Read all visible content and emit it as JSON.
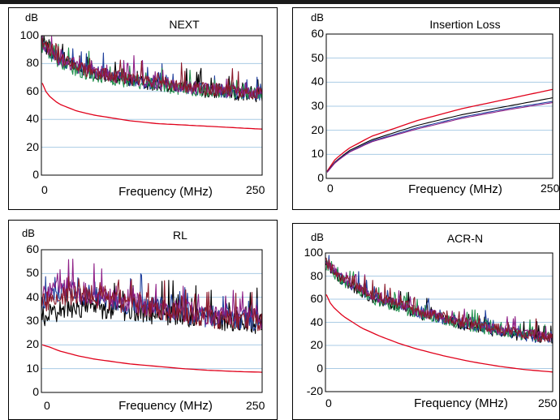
{
  "chart_data": [
    {
      "type": "line",
      "title": "NEXT",
      "ylabel": "dB",
      "xlabel": "Frequency (MHz)",
      "xlim": [
        0,
        250
      ],
      "ylim": [
        0,
        100
      ],
      "yticks": [
        "100",
        "80",
        "60",
        "40",
        "20",
        "0"
      ],
      "ytick_values": [
        100,
        80,
        60,
        40,
        20,
        0
      ],
      "xticks": [
        "0",
        "250"
      ],
      "grid": true,
      "series": [
        {
          "color": "#e0001a",
          "values": [
            [
              1,
              66
            ],
            [
              5,
              60
            ],
            [
              10,
              56
            ],
            [
              20,
              51
            ],
            [
              40,
              46
            ],
            [
              60,
              43
            ],
            [
              80,
              41
            ],
            [
              100,
              39
            ],
            [
              130,
              37
            ],
            [
              160,
              36
            ],
            [
              190,
              35
            ],
            [
              220,
              34
            ],
            [
              250,
              33
            ]
          ]
        },
        {
          "color": "#000000",
          "values": [
            [
              0,
              95
            ],
            [
              20,
              82
            ],
            [
              50,
              74
            ],
            [
              100,
              68
            ],
            [
              150,
              63
            ],
            [
              200,
              59
            ],
            [
              250,
              57
            ]
          ]
        },
        {
          "color": "#1f3f9c",
          "values": [
            [
              0,
              94
            ],
            [
              20,
              83
            ],
            [
              50,
              75
            ],
            [
              100,
              68
            ],
            [
              150,
              64
            ],
            [
              200,
              60
            ],
            [
              250,
              58
            ]
          ]
        },
        {
          "color": "#1e8f4a",
          "values": [
            [
              0,
              93
            ],
            [
              20,
              81
            ],
            [
              50,
              73
            ],
            [
              100,
              67
            ],
            [
              150,
              63
            ],
            [
              200,
              60
            ],
            [
              250,
              58
            ]
          ]
        },
        {
          "color": "#8e1f86",
          "values": [
            [
              0,
              95
            ],
            [
              20,
              83
            ],
            [
              50,
              75
            ],
            [
              100,
              69
            ],
            [
              150,
              64
            ],
            [
              200,
              61
            ],
            [
              250,
              59
            ]
          ]
        },
        {
          "color": "#8b1a2b",
          "values": [
            [
              0,
              96
            ],
            [
              20,
              84
            ],
            [
              50,
              75
            ],
            [
              100,
              69
            ],
            [
              150,
              65
            ],
            [
              200,
              61
            ],
            [
              250,
              59
            ]
          ]
        }
      ]
    },
    {
      "type": "line",
      "title": "Insertion Loss",
      "ylabel": "dB",
      "xlabel": "Frequency (MHz)",
      "xlim": [
        0,
        250
      ],
      "ylim": [
        0,
        60
      ],
      "yticks": [
        "60",
        "50",
        "40",
        "30",
        "20",
        "10",
        "0"
      ],
      "ytick_values": [
        60,
        50,
        40,
        30,
        20,
        10,
        0
      ],
      "xticks": [
        "0",
        "250"
      ],
      "grid": true,
      "series": [
        {
          "color": "#e0001a",
          "values": [
            [
              1,
              3
            ],
            [
              10,
              8
            ],
            [
              25,
              12.5
            ],
            [
              50,
              17.5
            ],
            [
              100,
              24
            ],
            [
              150,
              29
            ],
            [
              200,
              33
            ],
            [
              250,
              37
            ]
          ]
        },
        {
          "color": "#000000",
          "values": [
            [
              1,
              2.7
            ],
            [
              10,
              7
            ],
            [
              25,
              11.5
            ],
            [
              50,
              16
            ],
            [
              100,
              22
            ],
            [
              150,
              26.5
            ],
            [
              200,
              30
            ],
            [
              250,
              33.5
            ]
          ]
        },
        {
          "color": "#1f3f9c",
          "values": [
            [
              1,
              2.6
            ],
            [
              10,
              6.8
            ],
            [
              25,
              11
            ],
            [
              50,
              15.5
            ],
            [
              100,
              21
            ],
            [
              150,
              25.5
            ],
            [
              200,
              29
            ],
            [
              250,
              32
            ]
          ]
        },
        {
          "color": "#8e1f86",
          "values": [
            [
              1,
              2.5
            ],
            [
              10,
              6.6
            ],
            [
              25,
              10.8
            ],
            [
              50,
              15.2
            ],
            [
              100,
              20.5
            ],
            [
              150,
              25
            ],
            [
              200,
              28.5
            ],
            [
              250,
              31.5
            ]
          ]
        }
      ]
    },
    {
      "type": "line",
      "title": "RL",
      "ylabel": "dB",
      "xlabel": "Frequency (MHz)",
      "xlim": [
        0,
        250
      ],
      "ylim": [
        0,
        60
      ],
      "yticks": [
        "60",
        "50",
        "40",
        "30",
        "20",
        "10",
        "0"
      ],
      "ytick_values": [
        60,
        50,
        40,
        30,
        20,
        10,
        0
      ],
      "xticks": [
        "0",
        "250"
      ],
      "grid": true,
      "series": [
        {
          "color": "#e0001a",
          "values": [
            [
              1,
              20
            ],
            [
              10,
              19
            ],
            [
              20,
              17.5
            ],
            [
              40,
              15.5
            ],
            [
              60,
              14
            ],
            [
              80,
              13
            ],
            [
              100,
              12
            ],
            [
              130,
              11
            ],
            [
              160,
              10
            ],
            [
              190,
              9.3
            ],
            [
              220,
              8.8
            ],
            [
              250,
              8.5
            ]
          ]
        },
        {
          "color": "#000000",
          "values": [
            [
              0,
              32
            ],
            [
              20,
              34
            ],
            [
              50,
              36
            ],
            [
              100,
              34
            ],
            [
              150,
              32
            ],
            [
              200,
              30
            ],
            [
              250,
              29
            ]
          ]
        },
        {
          "color": "#1f3f9c",
          "values": [
            [
              0,
              38
            ],
            [
              20,
              42
            ],
            [
              50,
              41
            ],
            [
              100,
              37
            ],
            [
              150,
              34
            ],
            [
              200,
              31
            ],
            [
              250,
              30
            ]
          ]
        },
        {
          "color": "#8e1f86",
          "values": [
            [
              0,
              40
            ],
            [
              20,
              44
            ],
            [
              50,
              42
            ],
            [
              100,
              38
            ],
            [
              150,
              35
            ],
            [
              200,
              32
            ],
            [
              250,
              31
            ]
          ]
        },
        {
          "color": "#8b1a2b",
          "values": [
            [
              0,
              37
            ],
            [
              20,
              41
            ],
            [
              50,
              40
            ],
            [
              100,
              37
            ],
            [
              150,
              34
            ],
            [
              200,
              31
            ],
            [
              250,
              30
            ]
          ]
        }
      ]
    },
    {
      "type": "line",
      "title": "ACR-N",
      "ylabel": "dB",
      "xlabel": "Frequency (MHz)",
      "xlim": [
        0,
        250
      ],
      "ylim": [
        -20,
        100
      ],
      "yticks": [
        "100",
        "80",
        "60",
        "40",
        "20",
        "0",
        "-20"
      ],
      "ytick_values": [
        100,
        80,
        60,
        40,
        20,
        0,
        -20
      ],
      "xticks": [
        "0",
        "250"
      ],
      "grid": true,
      "series": [
        {
          "color": "#e0001a",
          "values": [
            [
              1,
              64
            ],
            [
              5,
              57
            ],
            [
              10,
              52
            ],
            [
              20,
              45
            ],
            [
              40,
              35
            ],
            [
              60,
              28
            ],
            [
              80,
              22
            ],
            [
              100,
              17
            ],
            [
              130,
              11
            ],
            [
              160,
              6
            ],
            [
              190,
              2
            ],
            [
              220,
              -1
            ],
            [
              250,
              -3
            ]
          ]
        },
        {
          "color": "#000000",
          "values": [
            [
              0,
              92
            ],
            [
              20,
              75
            ],
            [
              50,
              62
            ],
            [
              100,
              48
            ],
            [
              150,
              38
            ],
            [
              200,
              30
            ],
            [
              250,
              24
            ]
          ]
        },
        {
          "color": "#1f3f9c",
          "values": [
            [
              0,
              91
            ],
            [
              20,
              76
            ],
            [
              50,
              63
            ],
            [
              100,
              49
            ],
            [
              150,
              39
            ],
            [
              200,
              31
            ],
            [
              250,
              25
            ]
          ]
        },
        {
          "color": "#1e8f4a",
          "values": [
            [
              0,
              90
            ],
            [
              20,
              74
            ],
            [
              50,
              61
            ],
            [
              100,
              48
            ],
            [
              150,
              38
            ],
            [
              200,
              31
            ],
            [
              250,
              26
            ]
          ]
        },
        {
          "color": "#8e1f86",
          "values": [
            [
              0,
              92
            ],
            [
              20,
              77
            ],
            [
              50,
              64
            ],
            [
              100,
              50
            ],
            [
              150,
              40
            ],
            [
              200,
              32
            ],
            [
              250,
              27
            ]
          ]
        },
        {
          "color": "#8b1a2b",
          "values": [
            [
              0,
              93
            ],
            [
              20,
              77
            ],
            [
              50,
              64
            ],
            [
              100,
              50
            ],
            [
              150,
              40
            ],
            [
              200,
              32
            ],
            [
              250,
              26
            ]
          ]
        }
      ]
    }
  ]
}
